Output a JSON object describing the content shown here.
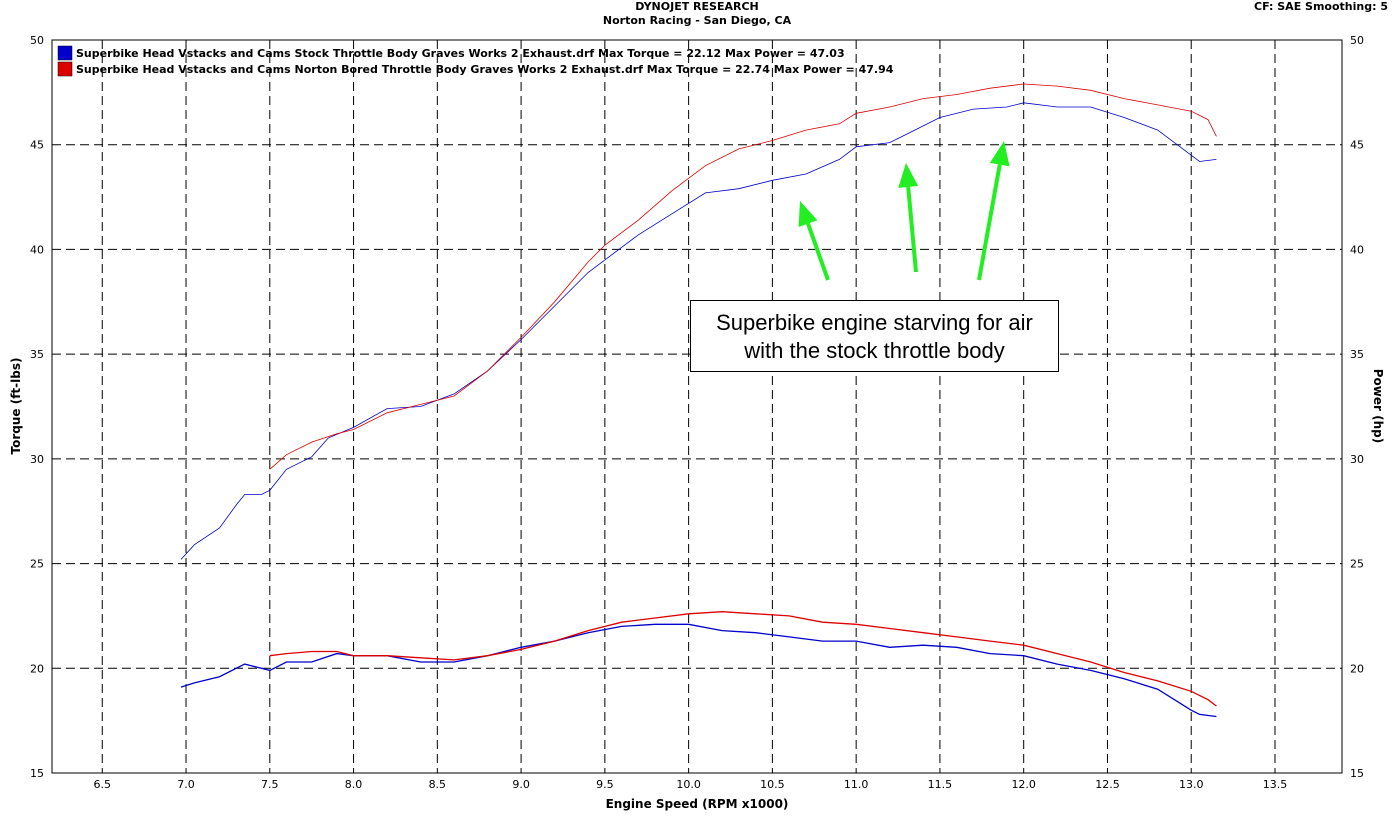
{
  "header": {
    "company": "DYNOJET RESEARCH",
    "shop": "Norton Racing - San Diego, CA",
    "settings": "CF: SAE  Smoothing: 5"
  },
  "annotation": {
    "lines": [
      "Superbike engine starving for air",
      "with the stock throttle body"
    ],
    "arrow_color": "#22ee22"
  },
  "chart_data": {
    "type": "line",
    "xlabel": "Engine Speed (RPM x1000)",
    "ylabel": "Torque (ft-lbs)",
    "y2label": "Power (hp)",
    "xlim": [
      6.2,
      13.9
    ],
    "ylim": [
      15,
      50
    ],
    "x_ticks": [
      "6.5",
      "7.0",
      "7.5",
      "8.0",
      "8.5",
      "9.0",
      "9.5",
      "10.0",
      "10.5",
      "11.0",
      "11.5",
      "12.0",
      "12.5",
      "13.0",
      "13.5"
    ],
    "y_ticks": [
      "15",
      "20",
      "25",
      "30",
      "35",
      "40",
      "45",
      "50"
    ],
    "grid": true,
    "legend_position": "top-left",
    "series": [
      {
        "name": "Superbike Head Vstacks and Cams Stock Throttle Body Graves Works 2 Exhaust.drf Max Torque = 22.12 Max Power = 47.03",
        "color": "#0000cc",
        "measure": "power",
        "x": [
          6.97,
          7.05,
          7.2,
          7.3,
          7.35,
          7.45,
          7.5,
          7.6,
          7.75,
          7.85,
          8.0,
          8.2,
          8.4,
          8.6,
          8.8,
          9.0,
          9.2,
          9.4,
          9.5,
          9.7,
          9.9,
          10.1,
          10.3,
          10.5,
          10.7,
          10.9,
          11.0,
          11.2,
          11.35,
          11.5,
          11.7,
          11.9,
          12.0,
          12.2,
          12.4,
          12.6,
          12.8,
          13.0,
          13.05,
          13.15
        ],
        "y": [
          25.2,
          25.9,
          26.7,
          27.8,
          28.3,
          28.3,
          28.5,
          29.5,
          30.1,
          31.0,
          31.5,
          32.4,
          32.5,
          33.1,
          34.2,
          35.7,
          37.3,
          38.9,
          39.5,
          40.7,
          41.7,
          42.7,
          42.9,
          43.3,
          43.6,
          44.3,
          44.9,
          45.1,
          45.7,
          46.3,
          46.7,
          46.8,
          47.0,
          46.8,
          46.8,
          46.3,
          45.7,
          44.5,
          44.2,
          44.3
        ]
      },
      {
        "name": "Superbike Head Vstacks and Cams Norton Bored Throttle Body Graves Works 2 Exhaust.drf Max Torque = 22.74 Max Power = 47.94",
        "color": "#dd0000",
        "measure": "power",
        "x": [
          7.5,
          7.6,
          7.75,
          7.9,
          8.0,
          8.2,
          8.4,
          8.6,
          8.8,
          9.0,
          9.2,
          9.4,
          9.5,
          9.7,
          9.9,
          10.1,
          10.3,
          10.5,
          10.7,
          10.9,
          11.0,
          11.2,
          11.4,
          11.6,
          11.8,
          12.0,
          12.2,
          12.4,
          12.6,
          12.8,
          13.0,
          13.1,
          13.15
        ],
        "y": [
          29.5,
          30.2,
          30.8,
          31.2,
          31.4,
          32.2,
          32.6,
          33.0,
          34.2,
          35.8,
          37.5,
          39.4,
          40.2,
          41.4,
          42.8,
          44.0,
          44.8,
          45.2,
          45.7,
          46.0,
          46.5,
          46.8,
          47.2,
          47.4,
          47.7,
          47.9,
          47.8,
          47.6,
          47.2,
          46.9,
          46.6,
          46.2,
          45.4
        ]
      },
      {
        "name": "Superbike Head Vstacks and Cams Stock Throttle Body Graves Works 2 Exhaust.drf Max Torque = 22.12 Max Power = 47.03",
        "color": "#0000cc",
        "measure": "torque",
        "x": [
          6.97,
          7.05,
          7.2,
          7.35,
          7.5,
          7.6,
          7.75,
          7.9,
          8.0,
          8.2,
          8.4,
          8.6,
          8.8,
          9.0,
          9.2,
          9.4,
          9.6,
          9.8,
          10.0,
          10.2,
          10.4,
          10.6,
          10.8,
          11.0,
          11.2,
          11.4,
          11.6,
          11.8,
          12.0,
          12.2,
          12.4,
          12.6,
          12.8,
          13.0,
          13.05,
          13.15
        ],
        "y": [
          19.1,
          19.3,
          19.6,
          20.2,
          19.9,
          20.3,
          20.3,
          20.7,
          20.6,
          20.6,
          20.3,
          20.3,
          20.6,
          21.0,
          21.3,
          21.7,
          22.0,
          22.1,
          22.1,
          21.8,
          21.7,
          21.5,
          21.3,
          21.3,
          21.0,
          21.1,
          21.0,
          20.7,
          20.6,
          20.2,
          19.9,
          19.5,
          19.0,
          18.0,
          17.8,
          17.7
        ]
      },
      {
        "name": "Superbike Head Vstacks and Cams Norton Bored Throttle Body Graves Works 2 Exhaust.drf Max Torque = 22.74 Max Power = 47.94",
        "color": "#dd0000",
        "measure": "torque",
        "x": [
          7.5,
          7.6,
          7.75,
          7.9,
          8.0,
          8.2,
          8.4,
          8.6,
          8.8,
          9.0,
          9.2,
          9.4,
          9.6,
          9.8,
          10.0,
          10.2,
          10.4,
          10.6,
          10.8,
          11.0,
          11.2,
          11.4,
          11.6,
          11.8,
          12.0,
          12.2,
          12.4,
          12.6,
          12.8,
          13.0,
          13.1,
          13.15
        ],
        "y": [
          20.6,
          20.7,
          20.8,
          20.8,
          20.6,
          20.6,
          20.5,
          20.4,
          20.6,
          20.9,
          21.3,
          21.8,
          22.2,
          22.4,
          22.6,
          22.7,
          22.6,
          22.5,
          22.2,
          22.1,
          21.9,
          21.7,
          21.5,
          21.3,
          21.1,
          20.7,
          20.3,
          19.8,
          19.4,
          18.9,
          18.5,
          18.2
        ]
      }
    ]
  }
}
